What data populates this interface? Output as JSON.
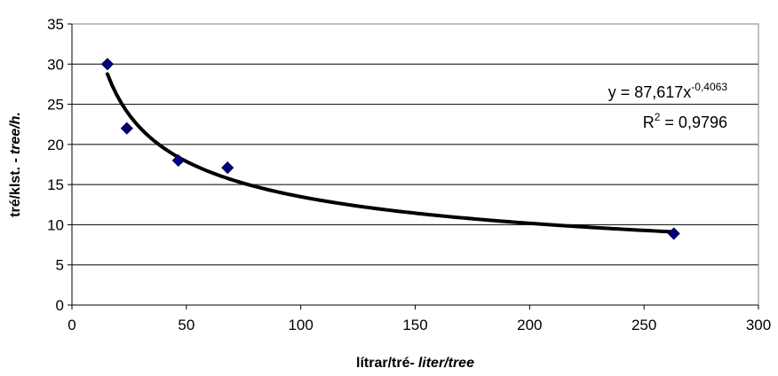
{
  "chart_data": {
    "type": "scatter",
    "xlabel_main": "lítrar/tré-",
    "xlabel_italic": "liter/tree",
    "ylabel_main": "tré/klst. -",
    "ylabel_italic": "tree/h.",
    "xlim": [
      0,
      300
    ],
    "ylim": [
      0,
      35
    ],
    "xticks": [
      0,
      50,
      100,
      150,
      200,
      250,
      300
    ],
    "yticks": [
      0,
      5,
      10,
      15,
      20,
      25,
      30,
      35
    ],
    "grid": "horizontal",
    "series": [
      {
        "marker": "diamond",
        "color": "#000080",
        "points": [
          {
            "x": 15.5,
            "y": 30
          },
          {
            "x": 24,
            "y": 22
          },
          {
            "x": 46.5,
            "y": 18
          },
          {
            "x": 68,
            "y": 17.1
          },
          {
            "x": 263,
            "y": 8.9
          }
        ]
      }
    ],
    "trendline": {
      "type": "power",
      "a": 87.617,
      "b": -0.4063,
      "x_from": 15.5,
      "x_to": 263,
      "color": "#000000"
    },
    "annotation": {
      "eq_prefix": "y = 87,617x",
      "eq_exponent": "-0,4063",
      "r2_prefix": "R",
      "r2_exponent": "2",
      "r2_suffix": " = 0,9796"
    }
  }
}
